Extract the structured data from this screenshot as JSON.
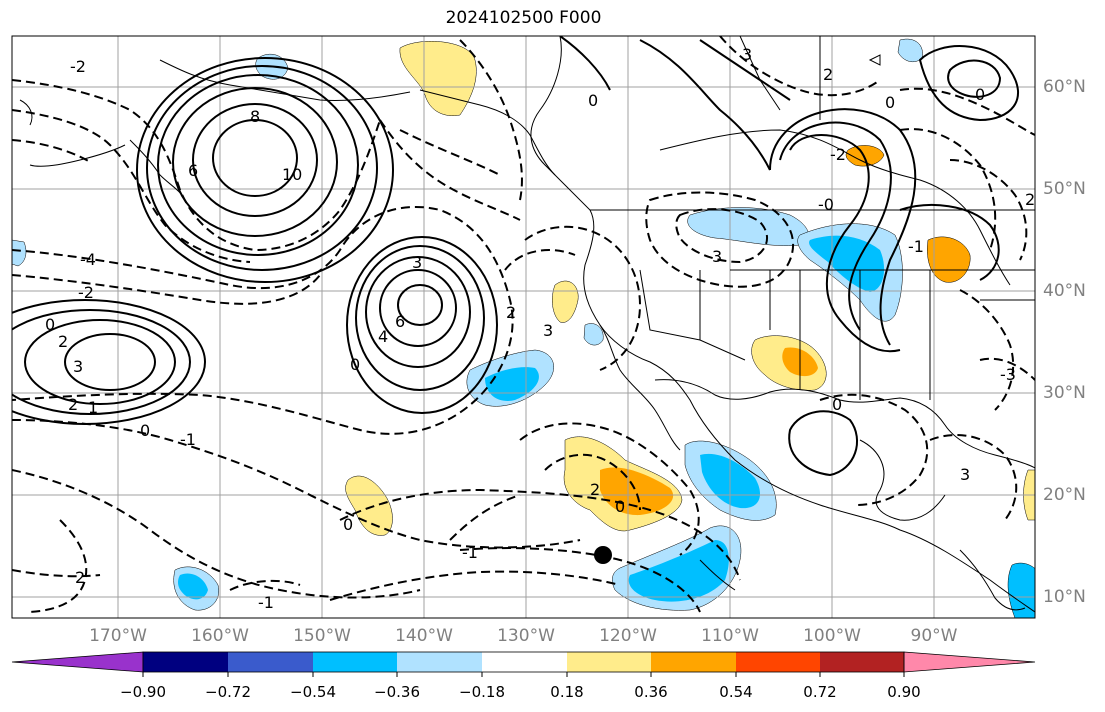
{
  "title": "2024102500 F000",
  "map": {
    "lon_labels": [
      "170°W",
      "160°W",
      "150°W",
      "140°W",
      "130°W",
      "120°W",
      "110°W",
      "100°W",
      "90°W"
    ],
    "lat_labels": [
      "60°N",
      "50°N",
      "40°N",
      "30°N",
      "20°N",
      "10°N"
    ],
    "contour_labels": [
      {
        "text": "-2"
      },
      {
        "text": "8"
      },
      {
        "text": "6"
      },
      {
        "text": "10"
      },
      {
        "text": "-4"
      },
      {
        "text": "-2"
      },
      {
        "text": "0"
      },
      {
        "text": "2"
      },
      {
        "text": "3"
      },
      {
        "text": "2"
      },
      {
        "text": "1"
      },
      {
        "text": "0"
      },
      {
        "text": "-1"
      },
      {
        "text": "3"
      },
      {
        "text": "6"
      },
      {
        "text": "4"
      },
      {
        "text": "0"
      },
      {
        "text": "2"
      },
      {
        "text": "3"
      },
      {
        "text": "0"
      },
      {
        "text": "3"
      },
      {
        "text": "2"
      },
      {
        "text": "0"
      },
      {
        "text": "-0"
      },
      {
        "text": "-2"
      },
      {
        "text": "2"
      },
      {
        "text": "-1"
      },
      {
        "text": "0"
      },
      {
        "text": "3"
      },
      {
        "text": "0"
      },
      {
        "text": "-3"
      },
      {
        "text": "3"
      },
      {
        "text": "2"
      },
      {
        "text": "0"
      },
      {
        "text": "0"
      },
      {
        "text": "2"
      },
      {
        "text": "-1"
      },
      {
        "text": "-1"
      }
    ]
  },
  "colorbar": {
    "tick_labels": [
      "−0.90",
      "−0.72",
      "−0.54",
      "−0.36",
      "−0.18",
      "0.18",
      "0.36",
      "0.54",
      "0.72",
      "0.90"
    ],
    "colors": [
      "#9932cc",
      "#000080",
      "#3a5bcc",
      "#00bfff",
      "#b0e2ff",
      "#ffffff",
      "#ffec8b",
      "#ffa500",
      "#ff4500",
      "#b22222",
      "#ff88aa"
    ]
  },
  "marker": {
    "label": "",
    "lon": -122.5,
    "lat": 14
  }
}
